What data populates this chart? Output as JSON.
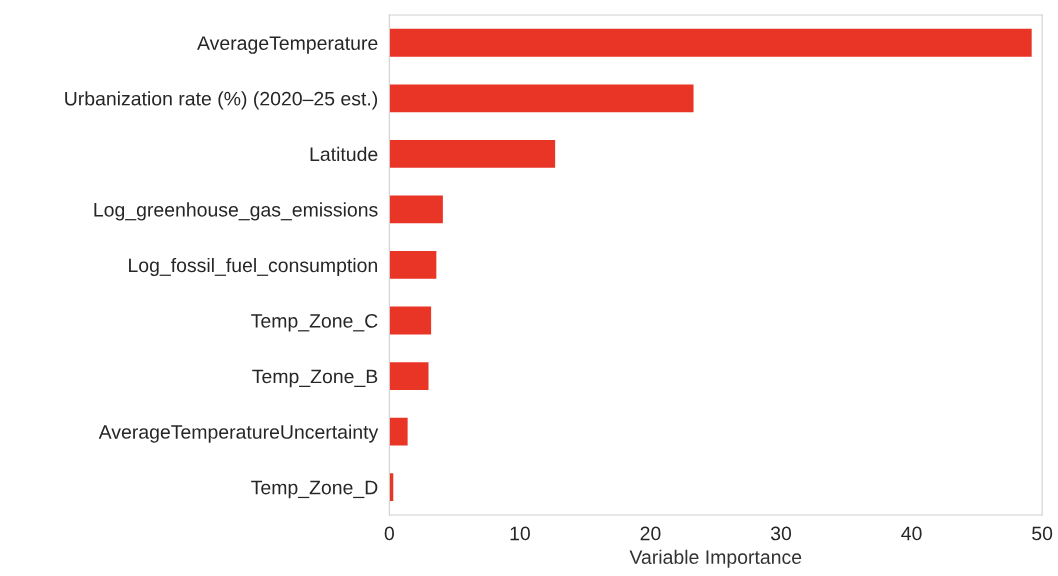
{
  "chart_data": {
    "type": "bar",
    "orientation": "horizontal",
    "xlabel": "Variable Importance",
    "categories": [
      "AverageTemperature",
      "Urbanization rate (%) (2020–25 est.)",
      "Latitude",
      "Log_greenhouse_gas_emissions",
      "Log_fossil_fuel_consumption",
      "Temp_Zone_C",
      "Temp_Zone_B",
      "AverageTemperatureUncertainty",
      "Temp_Zone_D"
    ],
    "values": [
      49.2,
      23.3,
      12.7,
      4.1,
      3.6,
      3.2,
      3.0,
      1.4,
      0.3
    ],
    "color": "#e83526",
    "xlim": [
      0,
      50
    ],
    "xticks": [
      0,
      10,
      20,
      30,
      40,
      50
    ],
    "grid": false,
    "legend": false
  }
}
